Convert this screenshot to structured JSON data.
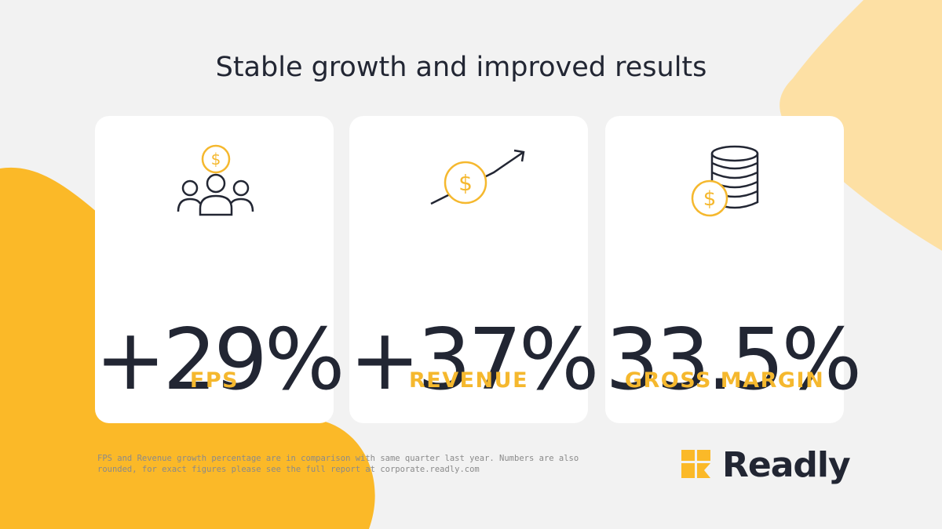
{
  "header": {
    "title": "Stable growth and improved results"
  },
  "cards": [
    {
      "value": "+29%",
      "label": "FPS"
    },
    {
      "value": "+37%",
      "label": "REVENUE"
    },
    {
      "value": "33.5%",
      "label": "GROSS MARGIN"
    }
  ],
  "footnote": {
    "lines": [
      "FPS and Revenue growth percentage are in comparison with same quarter last year. Numbers are also",
      "rounded, for exact figures please see the full report at corporate.readly.com"
    ]
  },
  "logo": {
    "text": "Readly"
  }
}
